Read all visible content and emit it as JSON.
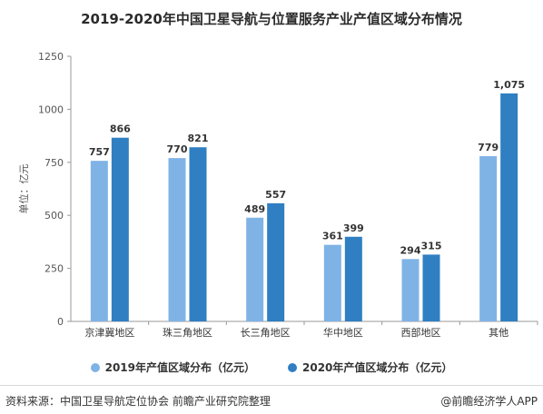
{
  "colors": {
    "s2019": "#7fb3e6",
    "s2020": "#2f7fc2",
    "axis": "#9a9a9a"
  },
  "footer": {
    "source": "资料来源：中国卫星导航定位协会 前瞻产业研究院整理",
    "brand": "@前瞻经济学人APP"
  },
  "chart_data": {
    "type": "bar",
    "title": "2019-2020年中国卫星导航与位置服务产业产值区域分布情况",
    "xlabel": "",
    "ylabel": "单位：亿元",
    "categories": [
      "京津冀地区",
      "珠三角地区",
      "长三角地区",
      "华中地区",
      "西部地区",
      "其他"
    ],
    "series": [
      {
        "name": "2019年产值区域分布（亿元）",
        "values": [
          757,
          770,
          489,
          361,
          294,
          779
        ],
        "labels": [
          "757",
          "770",
          "489",
          "361",
          "294",
          "779"
        ]
      },
      {
        "name": "2020年产值区域分布（亿元）",
        "values": [
          866,
          821,
          557,
          399,
          315,
          1075
        ],
        "labels": [
          "866",
          "821",
          "557",
          "399",
          "315",
          "1,075"
        ]
      }
    ],
    "ylim": [
      0,
      1250
    ],
    "yticks": [
      0,
      250,
      500,
      750,
      1000,
      1250
    ],
    "grid": false,
    "legend": "bottom"
  }
}
